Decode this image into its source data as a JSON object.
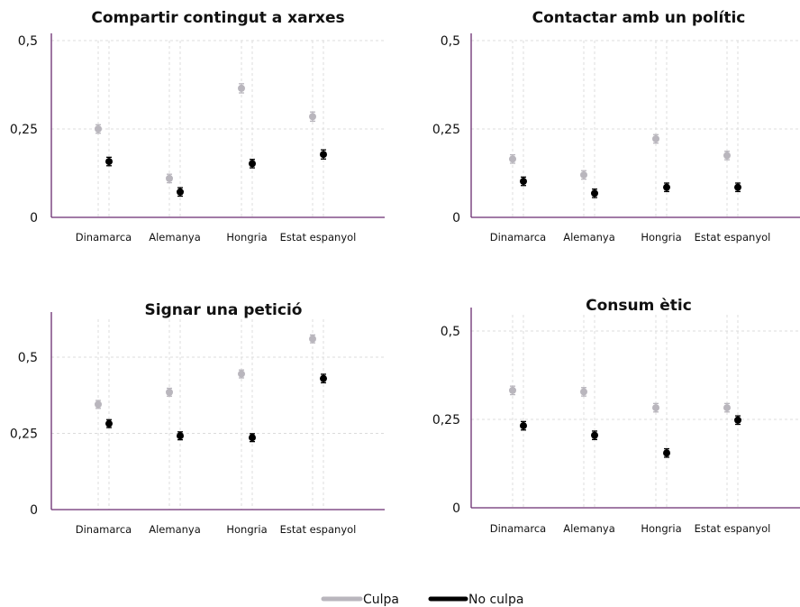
{
  "colors": {
    "culpa": "#b9b6bd",
    "no_culpa": "#000000",
    "axis": "#6a2c70"
  },
  "legend": {
    "culpa": "Culpa",
    "no_culpa": "No culpa"
  },
  "chart_data": [
    {
      "type": "scatter",
      "title": "Compartir contingut a xarxes",
      "categories": [
        "Dinamarca",
        "Alemanya",
        "Hongria",
        "Estat espanyol"
      ],
      "ylim": [
        0,
        0.5
      ],
      "yticks": [
        0,
        0.25,
        0.5
      ],
      "ytick_labels": [
        "0",
        "0,25",
        "0,5"
      ],
      "series": [
        {
          "name": "Culpa",
          "values": [
            0.25,
            0.11,
            0.365,
            0.285
          ],
          "errors": [
            0.012,
            0.012,
            0.013,
            0.013
          ]
        },
        {
          "name": "No culpa",
          "values": [
            0.158,
            0.072,
            0.152,
            0.178
          ],
          "errors": [
            0.012,
            0.012,
            0.012,
            0.013
          ]
        }
      ]
    },
    {
      "type": "scatter",
      "title": "Contactar amb un polític",
      "categories": [
        "Dinamarca",
        "Alemanya",
        "Hongria",
        "Estat espanyol"
      ],
      "ylim": [
        0,
        0.5
      ],
      "yticks": [
        0,
        0.25,
        0.5
      ],
      "ytick_labels": [
        "0",
        "0,25",
        "0,5"
      ],
      "series": [
        {
          "name": "Culpa",
          "values": [
            0.165,
            0.12,
            0.222,
            0.175
          ],
          "errors": [
            0.012,
            0.012,
            0.012,
            0.012
          ]
        },
        {
          "name": "No culpa",
          "values": [
            0.102,
            0.068,
            0.085,
            0.085
          ],
          "errors": [
            0.012,
            0.012,
            0.012,
            0.012
          ]
        }
      ]
    },
    {
      "type": "scatter",
      "title": "Signar una petició",
      "categories": [
        "Dinamarca",
        "Alemanya",
        "Hongria",
        "Estat espanyol"
      ],
      "ylim": [
        0,
        0.6
      ],
      "yticks": [
        0,
        0.25,
        0.5
      ],
      "ytick_labels": [
        "0",
        "0,25",
        "0,5"
      ],
      "series": [
        {
          "name": "Culpa",
          "values": [
            0.345,
            0.385,
            0.445,
            0.56
          ],
          "errors": [
            0.013,
            0.013,
            0.013,
            0.013
          ]
        },
        {
          "name": "No culpa",
          "values": [
            0.282,
            0.242,
            0.236,
            0.43
          ],
          "errors": [
            0.013,
            0.013,
            0.013,
            0.014
          ]
        }
      ]
    },
    {
      "type": "scatter",
      "title": "Consum ètic",
      "categories": [
        "Dinamarca",
        "Alemanya",
        "Hongria",
        "Estat espanyol"
      ],
      "ylim": [
        0,
        0.5
      ],
      "yticks": [
        0,
        0.25,
        0.5
      ],
      "ytick_labels": [
        "0",
        "0,25",
        "0,5"
      ],
      "series": [
        {
          "name": "Culpa",
          "values": [
            0.332,
            0.328,
            0.283,
            0.283
          ],
          "errors": [
            0.012,
            0.012,
            0.012,
            0.012
          ]
        },
        {
          "name": "No culpa",
          "values": [
            0.232,
            0.205,
            0.155,
            0.248
          ],
          "errors": [
            0.012,
            0.012,
            0.012,
            0.012
          ]
        }
      ]
    }
  ]
}
